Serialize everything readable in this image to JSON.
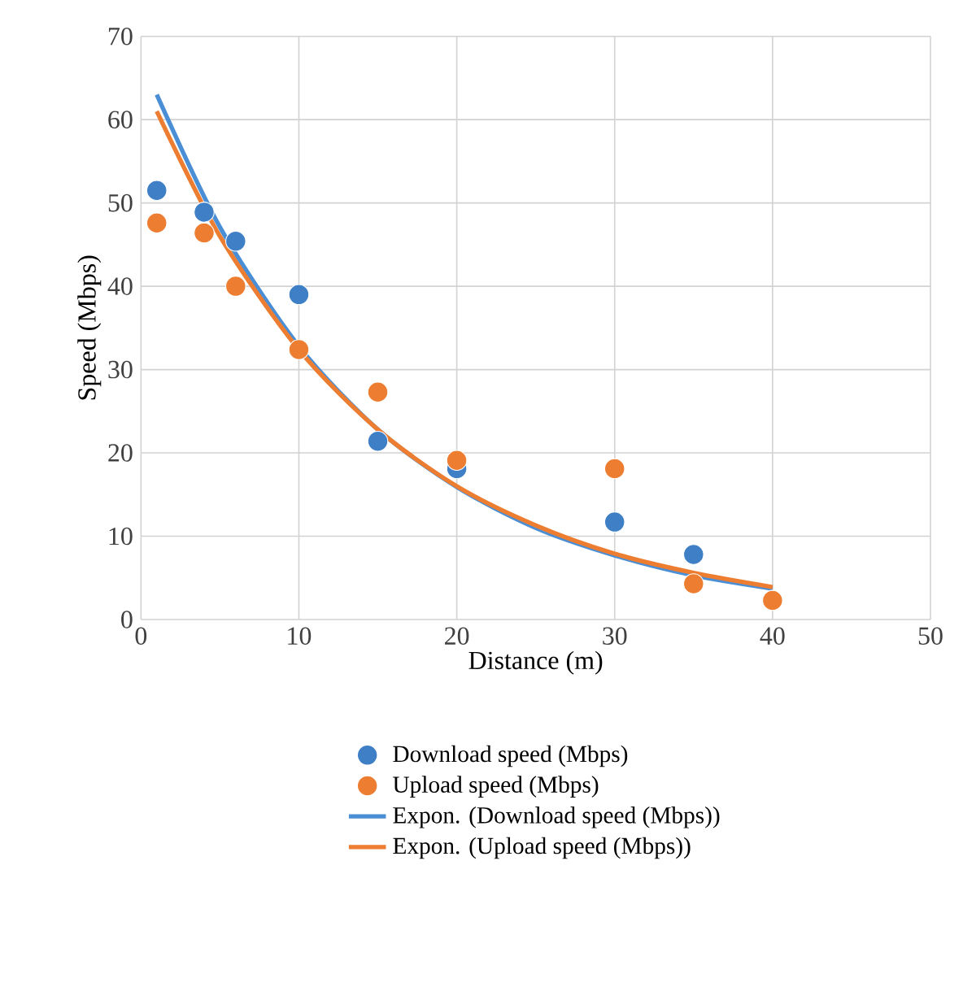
{
  "chart_data": {
    "type": "scatter",
    "xlabel": "Distance (m)",
    "ylabel": "Speed (Mbps)",
    "xlim": [
      0,
      50
    ],
    "xticks": [
      0,
      10,
      20,
      30,
      40,
      50
    ],
    "ylim": [
      0,
      70
    ],
    "yticks": [
      0,
      10,
      20,
      30,
      40,
      50,
      60,
      70
    ],
    "grid": true,
    "legend": "bottom",
    "series": [
      {
        "name": "Download speed (Mbps)",
        "marker": "circle",
        "color": "#3f7fc6",
        "x": [
          1,
          4,
          6,
          10,
          15,
          20,
          30,
          35
        ],
        "values": [
          51.5,
          48.9,
          45.4,
          39,
          21.4,
          18.1,
          11.7,
          7.8
        ]
      },
      {
        "name": "Upload speed (Mbps)",
        "marker": "circle",
        "color": "#ed7d31",
        "x": [
          1,
          4,
          6,
          10,
          15,
          20,
          30,
          35,
          40
        ],
        "values": [
          47.6,
          46.4,
          40,
          32.4,
          27.3,
          19.1,
          18.1,
          4.3,
          2.3
        ]
      },
      {
        "name": "Expon. (Download speed (Mbps))",
        "type": "line",
        "marker": "none",
        "color": "#4a8fd6",
        "x": [
          1,
          5,
          10,
          15,
          20,
          25,
          30,
          35,
          40
        ],
        "values": [
          63,
          47.1,
          32.8,
          22.8,
          15.9,
          11,
          7.7,
          5.3,
          3.7
        ]
      },
      {
        "name": "Expon. (Upload speed (Mbps))",
        "type": "line",
        "marker": "none",
        "color": "#ed7d31",
        "x": [
          1,
          5,
          10,
          15,
          20,
          25,
          30,
          35,
          40
        ],
        "values": [
          61,
          46,
          32.4,
          22.8,
          16,
          11.3,
          7.9,
          5.6,
          3.9
        ]
      }
    ]
  }
}
